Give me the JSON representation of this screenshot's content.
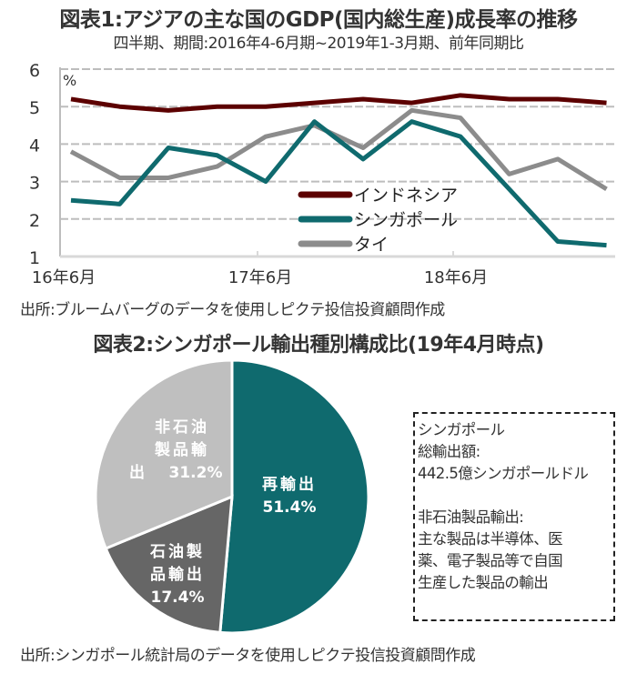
{
  "chart_data": [
    {
      "type": "line",
      "title": "図表1:アジアの主な国のGDP(国内総生産)成長率の推移",
      "subtitle": "四半期、期間:2016年4-6月期~2019年1-3月期、前年同期比",
      "ylabel": "%",
      "xlabel": "",
      "ylim": [
        1,
        6
      ],
      "yticks": [
        "1",
        "2",
        "3",
        "4",
        "5",
        "6"
      ],
      "grid": true,
      "x": [
        "2016Q2",
        "2016Q3",
        "2016Q4",
        "2017Q1",
        "2017Q2",
        "2017Q3",
        "2017Q4",
        "2018Q1",
        "2018Q2",
        "2018Q3",
        "2018Q4",
        "2019Q1"
      ],
      "xtick_labels": [
        "16年6月",
        "17年6月",
        "18年6月"
      ],
      "legend_position": "center-right",
      "series": [
        {
          "name": "インドネシア",
          "color": "#5c0000",
          "values": [
            5.2,
            5.0,
            4.9,
            5.0,
            5.0,
            5.1,
            5.2,
            5.1,
            5.3,
            5.2,
            5.2,
            5.1
          ]
        },
        {
          "name": "シンガポール",
          "color": "#0f6a6e",
          "values": [
            2.5,
            2.4,
            3.9,
            3.7,
            3.0,
            4.6,
            3.6,
            4.6,
            4.2,
            2.8,
            1.4,
            1.3
          ]
        },
        {
          "name": "タイ",
          "color": "#8c8c8c",
          "values": [
            3.8,
            3.1,
            3.1,
            3.4,
            4.2,
            4.5,
            3.9,
            4.9,
            4.7,
            3.2,
            3.6,
            2.8
          ]
        }
      ],
      "source": "出所:ブルームバーグのデータを使用しピクテ投信投資顧問作成"
    },
    {
      "type": "pie",
      "title": "図表2:シンガポール輸出種別構成比(19年4月時点)",
      "slices": [
        {
          "label_lines": [
            "再輸出"
          ],
          "value_text": "51.4%",
          "value": 51.4,
          "color": "#0f6a6e"
        },
        {
          "label_lines": [
            "石油製",
            "品輸出"
          ],
          "value_text": "17.4%",
          "value": 17.4,
          "color": "#666666"
        },
        {
          "label_lines": [
            "非石油",
            "製品輸",
            "出"
          ],
          "value_text": "31.2%",
          "value": 31.2,
          "color": "#bfbfbf"
        }
      ],
      "note_lines": [
        "シンガポール",
        "総輸出額:",
        "442.5億シンガポールドル",
        "",
        "非石油製品輸出:",
        "主な製品は半導体、医",
        "薬、電子製品等で自国",
        "生産した製品の輸出"
      ],
      "source": "出所:シンガポール統計局のデータを使用しピクテ投信投資顧問作成"
    }
  ]
}
